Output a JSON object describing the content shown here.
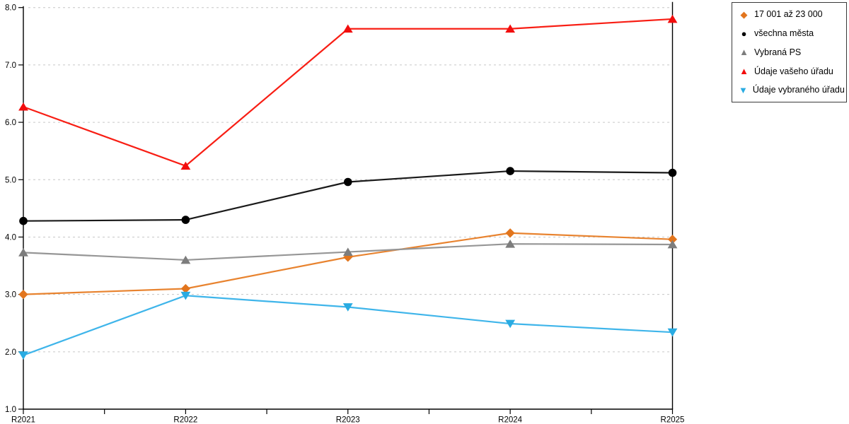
{
  "chart_data": {
    "type": "line",
    "title": "",
    "xlabel": "",
    "ylabel": "",
    "x_labels": [
      "R2021",
      "R2022",
      "R2023",
      "R2024",
      "R2025"
    ],
    "ylim": [
      1.0,
      8.0
    ],
    "y_ticks": [
      "8.0",
      "7.0",
      "6.0",
      "5.0",
      "4.0",
      "3.0",
      "2.0",
      "1.0"
    ],
    "y_tick_values": [
      8,
      7,
      6,
      5,
      4,
      3,
      2,
      1
    ],
    "grid": "horizontal-dashed",
    "grid_color": "#c6c6c6",
    "axis_color": "#000000",
    "legend_position": "top-right-outside",
    "series": [
      {
        "name": "17 001 až 23 000",
        "marker": "diamond",
        "color": "#e2751d",
        "line_color": "#e8832f",
        "values": [
          3.0,
          3.1,
          3.65,
          4.07,
          3.96
        ]
      },
      {
        "name": "všechna města",
        "marker": "circle",
        "color": "#000000",
        "line_color": "#1a1a1a",
        "values": [
          4.28,
          4.3,
          4.96,
          5.15,
          5.12
        ]
      },
      {
        "name": "Vybraná PS",
        "marker": "triangle-up",
        "color": "#7d7d7d",
        "line_color": "#969696",
        "values": [
          3.73,
          3.6,
          3.74,
          3.88,
          3.87
        ]
      },
      {
        "name": "Údaje vašeho úřadu",
        "marker": "triangle-up",
        "color": "#f20d0d",
        "line_color": "#f81e14",
        "values": [
          6.27,
          5.24,
          7.63,
          7.63,
          7.8
        ]
      },
      {
        "name": "Údaje vybraného úřadu",
        "marker": "triangle-down",
        "color": "#29abe2",
        "line_color": "#3fb5ea",
        "values": [
          1.94,
          2.98,
          2.78,
          2.49,
          2.34
        ]
      }
    ]
  }
}
